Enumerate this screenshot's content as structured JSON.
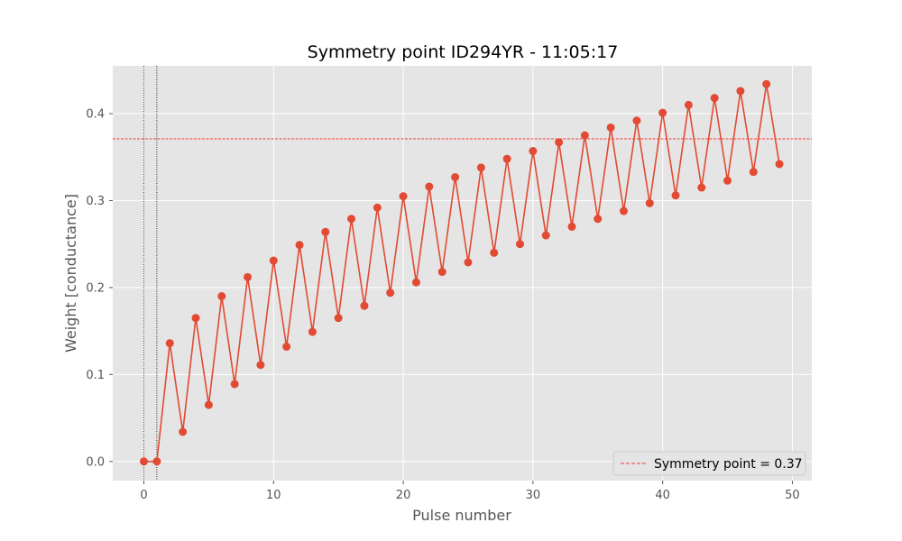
{
  "chart_data": {
    "type": "line",
    "title": "Symmetry point ID294YR - 11:05:17",
    "xlabel": "Pulse number",
    "ylabel": "Weight [conductance]",
    "xlim": [
      -2.4,
      51.5
    ],
    "ylim": [
      -0.022,
      0.455
    ],
    "xticks": [
      0,
      10,
      20,
      30,
      40,
      50
    ],
    "yticks": [
      0.0,
      0.1,
      0.2,
      0.3,
      0.4
    ],
    "xtick_labels": [
      "0",
      "10",
      "20",
      "30",
      "40",
      "50"
    ],
    "ytick_labels": [
      "0.0",
      "0.1",
      "0.2",
      "0.3",
      "0.4"
    ],
    "grid": true,
    "legend_position": "lower-right",
    "colors": {
      "series": "#E24A33",
      "symmetry_line": "#FF0000",
      "background": "#E5E5E5",
      "grid": "#FFFFFF"
    },
    "series": [
      {
        "x": [
          0,
          1,
          2,
          3,
          4,
          5,
          6,
          7,
          8,
          9,
          10,
          11,
          12,
          13,
          14,
          15,
          16,
          17,
          18,
          19,
          20,
          21,
          22,
          23,
          24,
          25,
          26,
          27,
          28,
          29,
          30,
          31,
          32,
          33,
          34,
          35,
          36,
          37,
          38,
          39,
          40,
          41,
          42,
          43,
          44,
          45,
          46,
          47,
          48,
          49
        ],
        "values": [
          0.0,
          0.0,
          0.136,
          0.034,
          0.165,
          0.065,
          0.19,
          0.089,
          0.212,
          0.111,
          0.231,
          0.132,
          0.249,
          0.149,
          0.264,
          0.165,
          0.279,
          0.179,
          0.292,
          0.194,
          0.305,
          0.206,
          0.316,
          0.218,
          0.327,
          0.229,
          0.338,
          0.24,
          0.348,
          0.25,
          0.357,
          0.26,
          0.367,
          0.27,
          0.375,
          0.279,
          0.384,
          0.288,
          0.392,
          0.297,
          0.401,
          0.306,
          0.41,
          0.315,
          0.418,
          0.323,
          0.426,
          0.333,
          0.434,
          0.342
        ]
      }
    ],
    "vlines": [
      {
        "x": 0,
        "style": "dotted"
      },
      {
        "x": 1,
        "style": "dotted"
      }
    ],
    "hline": {
      "y": 0.371,
      "style": "dashed",
      "label": "Symmetry point = 0.37"
    }
  }
}
